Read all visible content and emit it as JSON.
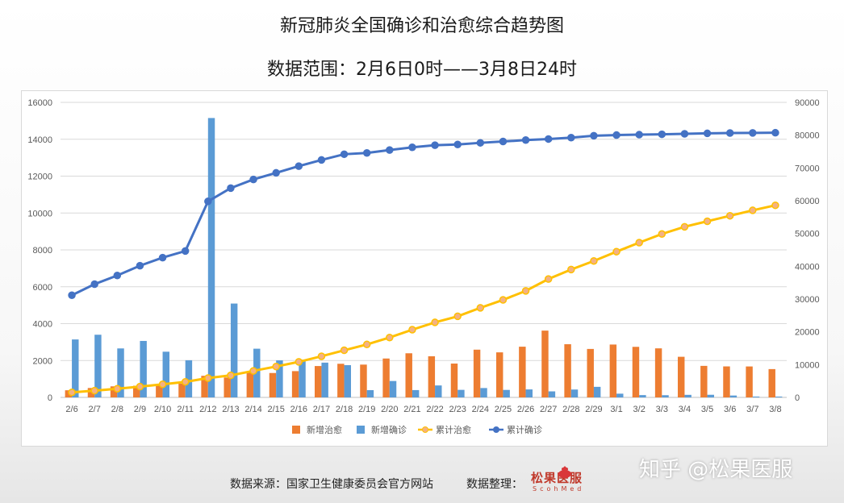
{
  "header": {
    "title_line1": "新冠肺炎全国确诊和治愈综合趋势图",
    "title_line2": "数据范围：2月6日0时——3月8日24时"
  },
  "footer": {
    "source": "数据来源：国家卫生健康委员会官方网站",
    "organizer": "数据整理：",
    "logo_text": "松果医服",
    "logo_subtext": "ScohMed",
    "watermark": "知乎 @松果医服"
  },
  "chart_data": {
    "type": "bar",
    "categories": [
      "2/6",
      "2/7",
      "2/8",
      "2/9",
      "2/10",
      "2/11",
      "2/12",
      "2/13",
      "2/14",
      "2/15",
      "2/16",
      "2/17",
      "2/18",
      "2/19",
      "2/20",
      "2/21",
      "2/22",
      "2/23",
      "2/24",
      "2/25",
      "2/26",
      "2/27",
      "2/28",
      "2/29",
      "3/1",
      "3/2",
      "3/3",
      "3/4",
      "3/5",
      "3/6",
      "3/7",
      "3/8"
    ],
    "left_axis": {
      "min": 0,
      "max": 16000,
      "ticks": [
        "0",
        "2000",
        "4000",
        "6000",
        "8000",
        "10000",
        "12000",
        "14000",
        "16000"
      ]
    },
    "right_axis": {
      "min": 0,
      "max": 90000,
      "ticks": [
        "0",
        "10000",
        "20000",
        "30000",
        "40000",
        "50000",
        "60000",
        "70000",
        "80000",
        "90000"
      ]
    },
    "grid": true,
    "legend_position": "bottom",
    "series": [
      {
        "name": "新增治愈",
        "type": "bar",
        "axis": "left",
        "color": "#ed7d31",
        "values": [
          387,
          510,
          600,
          632,
          716,
          744,
          1171,
          1081,
          1373,
          1323,
          1425,
          1701,
          1824,
          1779,
          2109,
          2393,
          2231,
          1835,
          2589,
          2443,
          2750,
          3622,
          2884,
          2628,
          2867,
          2742,
          2660,
          2203,
          1710,
          1681,
          1678,
          1535
        ]
      },
      {
        "name": "新增确诊",
        "type": "bar",
        "axis": "left",
        "color": "#5b9bd5",
        "values": [
          3143,
          3399,
          2656,
          3062,
          2478,
          2015,
          15152,
          5090,
          2641,
          2009,
          2048,
          1886,
          1749,
          394,
          889,
          397,
          648,
          409,
          508,
          406,
          433,
          327,
          427,
          573,
          202,
          125,
          119,
          139,
          143,
          102,
          46,
          45
        ]
      },
      {
        "name": "累计治愈",
        "type": "line",
        "axis": "right",
        "color": "#ffc000",
        "values": [
          1540,
          2050,
          2649,
          3281,
          3996,
          4740,
          5911,
          6723,
          8096,
          9419,
          10844,
          12552,
          14376,
          16155,
          18264,
          20659,
          22888,
          24734,
          27323,
          29745,
          32495,
          36117,
          39002,
          41625,
          44462,
          47204,
          49856,
          52045,
          53726,
          55404,
          57065,
          58600
        ]
      },
      {
        "name": "累计确诊",
        "type": "line",
        "axis": "right",
        "color": "#4472c4",
        "values": [
          31161,
          34546,
          37198,
          40171,
          42638,
          44653,
          59804,
          63851,
          66492,
          68500,
          70548,
          72436,
          74185,
          74576,
          75465,
          76288,
          76936,
          77150,
          77658,
          78064,
          78497,
          78824,
          79251,
          79824,
          80026,
          80151,
          80270,
          80409,
          80552,
          80651,
          80695,
          80735
        ]
      }
    ]
  }
}
